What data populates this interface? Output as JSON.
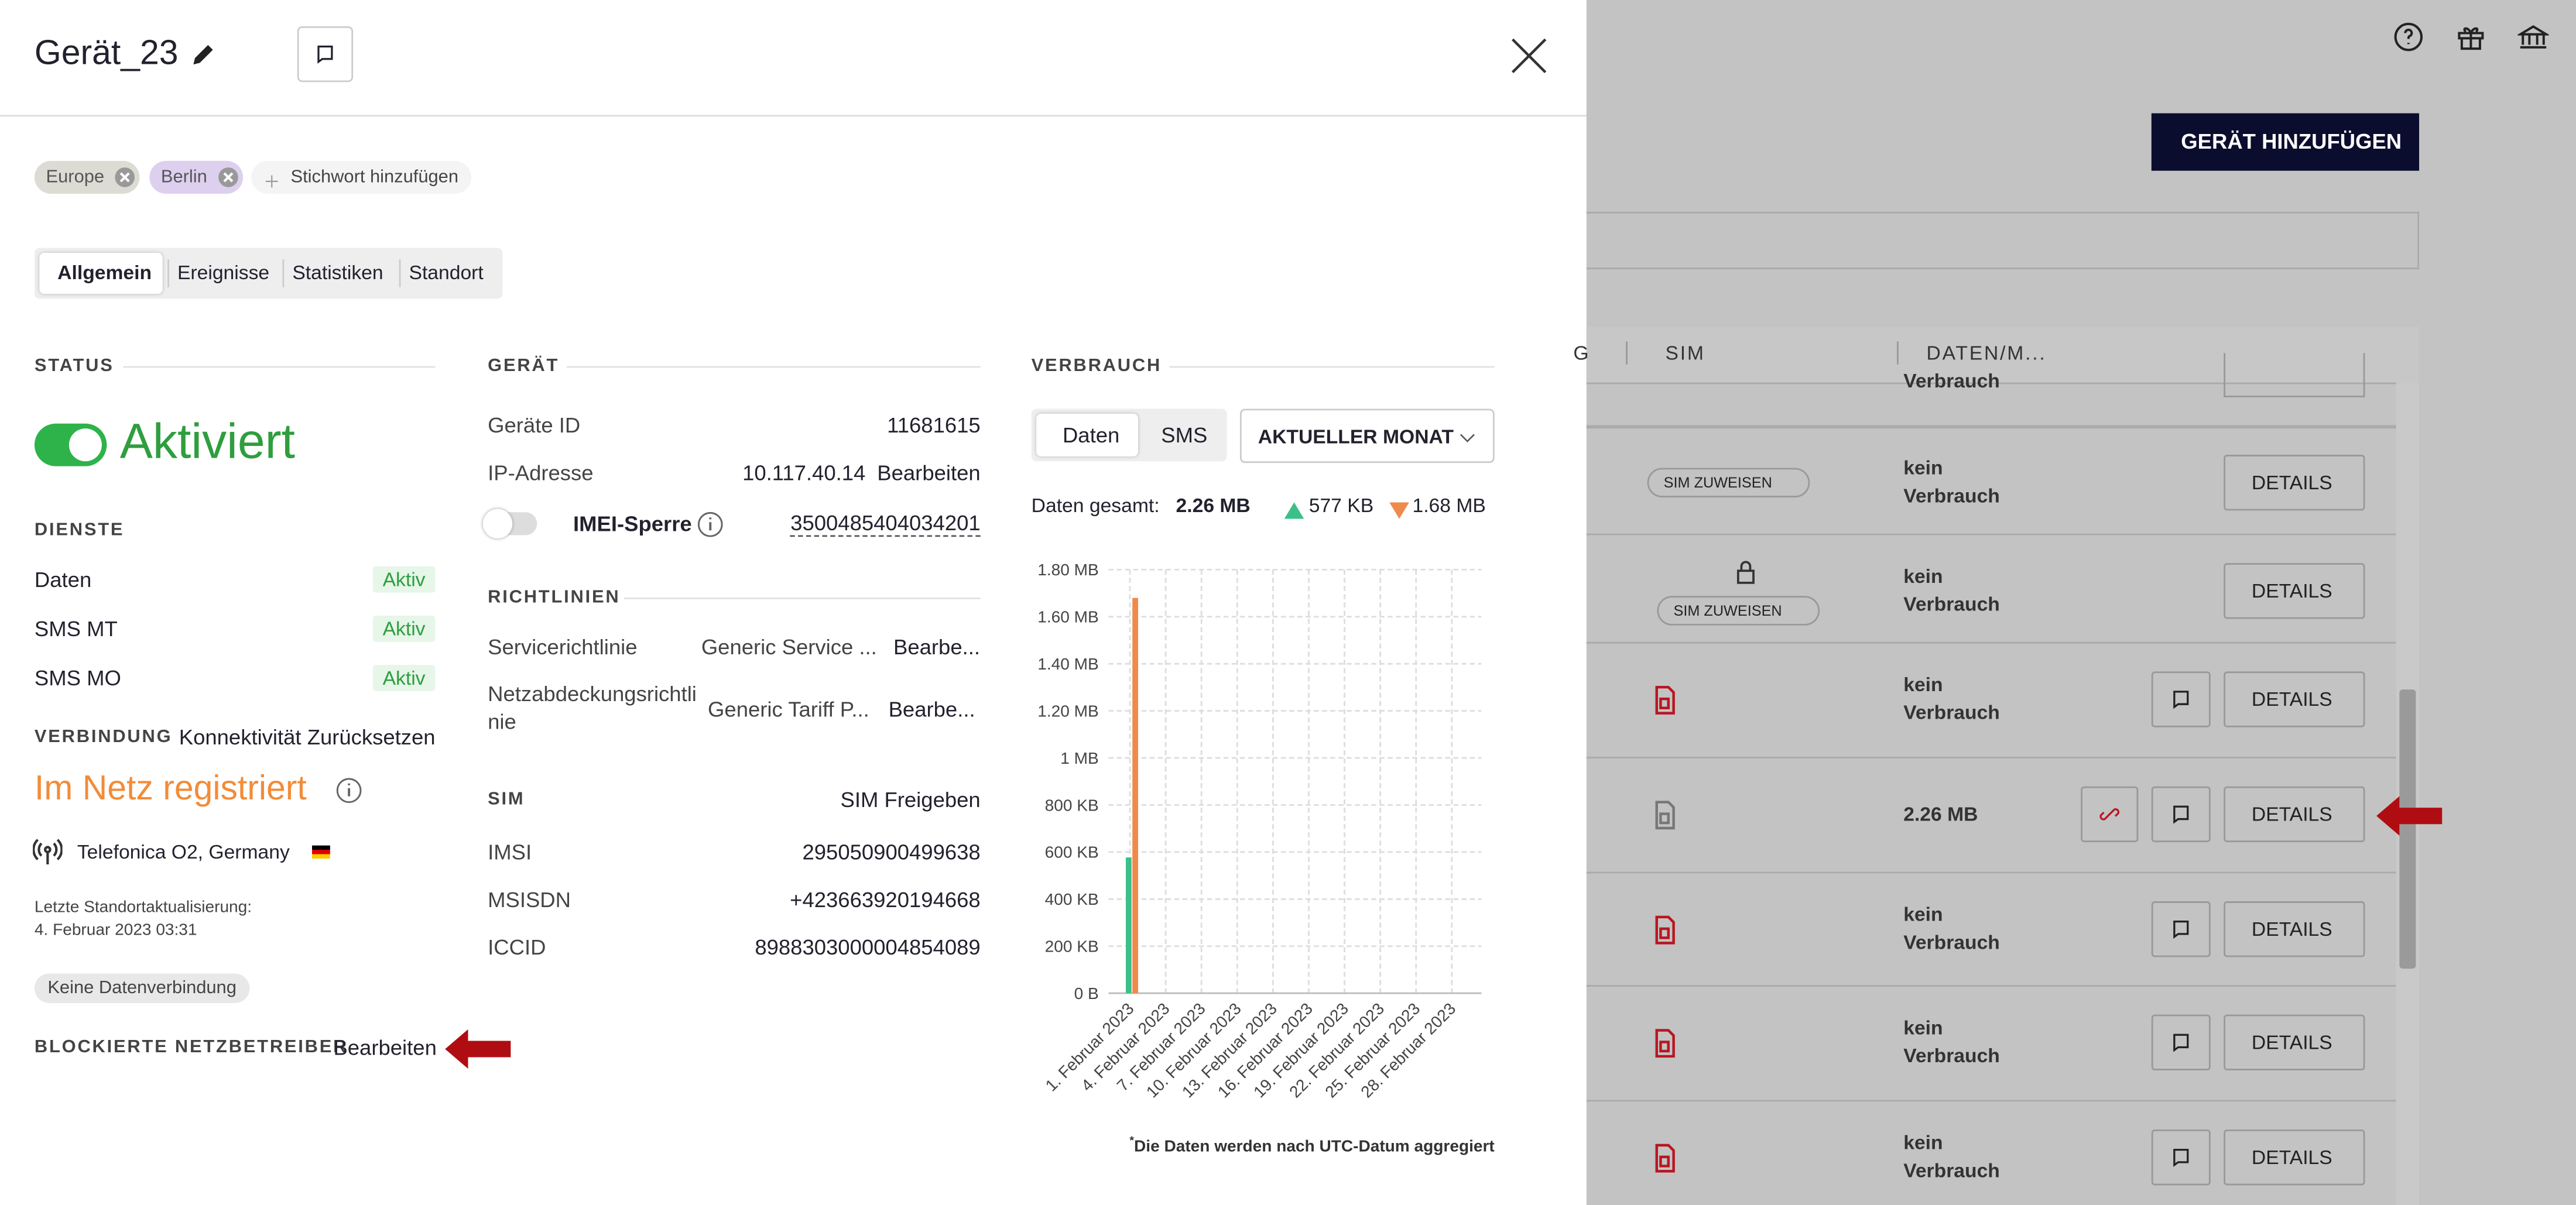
{
  "panel": {
    "title": "Gerät_23",
    "tags": [
      "Europe",
      "Berlin"
    ],
    "add_tag": "Stichwort hinzufügen",
    "tabs": [
      "Allgemein",
      "Ereignisse",
      "Statistiken",
      "Standort"
    ]
  },
  "status": {
    "heading": "STATUS",
    "state": "Aktiviert",
    "services_heading": "DIENSTE",
    "services": [
      {
        "name": "Daten",
        "state": "Aktiv"
      },
      {
        "name": "SMS MT",
        "state": "Aktiv"
      },
      {
        "name": "SMS MO",
        "state": "Aktiv"
      }
    ],
    "connection_heading": "VERBINDUNG",
    "reset": "Konnektivität Zurücksetzen",
    "network_state": "Im Netz registriert",
    "operator": "Telefonica O2, Germany",
    "location_label": "Letzte Standortaktualisierung:",
    "location_time": "4. Februar 2023 03:31",
    "data_connection": "Keine Datenverbindung",
    "blocked_heading": "BLOCKIERTE NETZBETREIBER",
    "blocked_edit": "Bearbeiten"
  },
  "device": {
    "heading": "GERÄT",
    "rows": [
      [
        "Geräte ID",
        "11681615"
      ],
      [
        "IP-Adresse",
        "10.117.40.14"
      ]
    ],
    "edit": "Bearbeiten",
    "imei_lock": "IMEI-Sperre",
    "imei": "3500485404034201",
    "policies_heading": "RICHTLINIEN",
    "policies": [
      [
        "Servicerichtlinie",
        "Generic Service ...",
        "Bearbe..."
      ],
      [
        "Netzabdeckungsrichtlinie",
        "Generic Tariff P...",
        "Bearbe..."
      ]
    ],
    "sim_heading": "SIM",
    "sim_release": "SIM Freigeben",
    "sim_rows": [
      [
        "IMSI",
        "295050900499638"
      ],
      [
        "MSISDN",
        "+423663920194668"
      ],
      [
        "ICCID",
        "8988303000004854089"
      ]
    ]
  },
  "usage": {
    "heading": "VERBRAUCH",
    "toggle": [
      "Daten",
      "SMS"
    ],
    "period": "AKTUELLER MONAT",
    "total_label": "Daten gesamt:",
    "total": "2.26 MB",
    "footnote_mark": "*",
    "footnote": "Die Daten werden nach UTC-Datum aggregiert"
  },
  "chart_data": {
    "type": "bar",
    "categories": [
      "1. Februar 2023",
      "4. Februar 2023",
      "7. Februar 2023",
      "10. Februar 2023",
      "13. Februar 2023",
      "16. Februar 2023",
      "19. Februar 2023",
      "22. Februar 2023",
      "25. Februar 2023",
      "28. Februar 2023"
    ],
    "series": [
      {
        "color": "#3dbf8a",
        "legend_label": "577 KB",
        "values": [
          577,
          0,
          0,
          0,
          0,
          0,
          0,
          0,
          0,
          0
        ]
      },
      {
        "color": "#f08a4b",
        "legend_label": "1.68 MB",
        "values": [
          1680,
          0,
          0,
          0,
          0,
          0,
          0,
          0,
          0,
          0
        ]
      }
    ],
    "ylim": [
      0,
      1800
    ],
    "yticks": [
      {
        "value": 0,
        "label": "0 B"
      },
      {
        "value": 200,
        "label": "200 KB"
      },
      {
        "value": 400,
        "label": "400 KB"
      },
      {
        "value": 600,
        "label": "600 KB"
      },
      {
        "value": 800,
        "label": "800 KB"
      },
      {
        "value": 1000,
        "label": "1 MB"
      },
      {
        "value": 1200,
        "label": "1.20 MB"
      },
      {
        "value": 1400,
        "label": "1.40 MB"
      },
      {
        "value": 1600,
        "label": "1.60 MB"
      },
      {
        "value": 1800,
        "label": "1.80 MB"
      }
    ],
    "grid": true
  },
  "background": {
    "add_button": "GERÄT HINZUFÜGEN",
    "columns": [
      "G",
      "SIM",
      "DATEN/M..."
    ],
    "rows": [
      {
        "usage": "Verbrauch"
      },
      {
        "usage": "kein Verbrauch",
        "sim": "SIM ZUWEISEN",
        "details": "DETAILS"
      },
      {
        "usage": "kein Verbrauch",
        "sim": "SIM ZUWEISEN",
        "details": "DETAILS"
      },
      {
        "usage": "kein Verbrauch",
        "details": "DETAILS"
      },
      {
        "usage": "2.26 MB",
        "details": "DETAILS"
      },
      {
        "usage": "kein Verbrauch",
        "details": "DETAILS"
      },
      {
        "usage": "kein Verbrauch",
        "details": "DETAILS"
      },
      {
        "usage": "kein Verbrauch",
        "details": "DETAILS"
      }
    ]
  }
}
